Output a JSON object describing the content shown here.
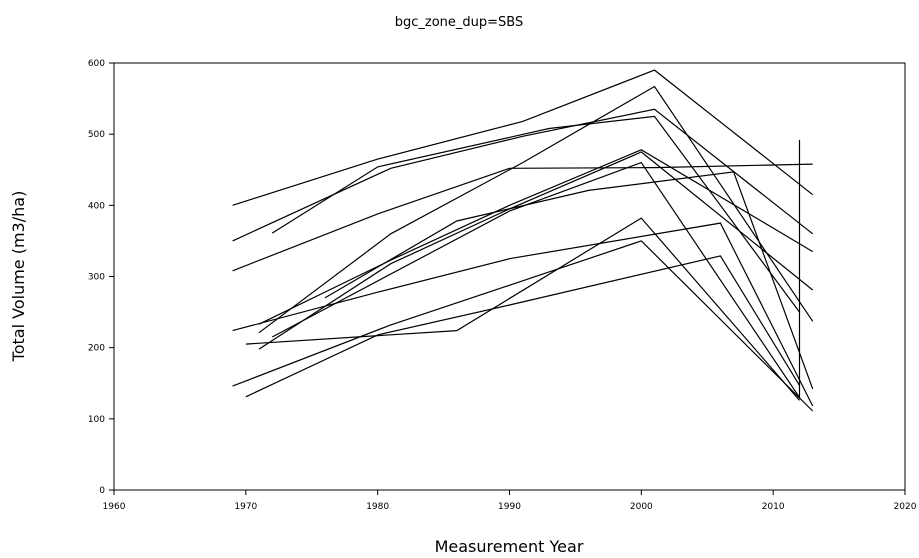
{
  "chart_data": {
    "type": "line",
    "title": "bgc_zone_dup=SBS",
    "xlabel": "Measurement Year",
    "ylabel": "Total Volume (m3/ha)",
    "xlim": [
      1960,
      2020
    ],
    "ylim": [
      0,
      600
    ],
    "xticks": [
      "1960",
      "1970",
      "1980",
      "1990",
      "2000",
      "2010",
      "2020"
    ],
    "yticks": [
      "0",
      "100",
      "200",
      "300",
      "400",
      "500",
      "600"
    ],
    "grid": false,
    "legend": "none",
    "line_color": "#000000",
    "series": [
      {
        "x": [
          1969,
          1980,
          1991,
          2001,
          2013
        ],
        "y": [
          400,
          465,
          518,
          590,
          415
        ]
      },
      {
        "x": [
          1969,
          1981,
          1991,
          2001,
          2013
        ],
        "y": [
          350,
          452,
          497,
          535,
          360
        ]
      },
      {
        "x": [
          1972,
          1980,
          1993,
          2001,
          2012
        ],
        "y": [
          361,
          454,
          508,
          525,
          250
        ]
      },
      {
        "x": [
          1969,
          1980,
          1990,
          2001,
          2013
        ],
        "y": [
          308,
          388,
          452,
          453,
          458
        ]
      },
      {
        "x": [
          1971,
          1981,
          1991,
          2001,
          2013
        ],
        "y": [
          221,
          360,
          460,
          567,
          237
        ]
      },
      {
        "x": [
          1971,
          1981,
          1990,
          2000,
          2013
        ],
        "y": [
          233,
          323,
          400,
          478,
          335
        ]
      },
      {
        "x": [
          1971,
          1981,
          1990,
          2000,
          2013
        ],
        "y": [
          198,
          318,
          395,
          475,
          281
        ]
      },
      {
        "x": [
          1976,
          1986,
          1996,
          2007,
          2013
        ],
        "y": [
          270,
          378,
          421,
          447,
          142
        ]
      },
      {
        "x": [
          1969,
          1980,
          1990,
          2006,
          2013
        ],
        "y": [
          224,
          278,
          325,
          375,
          118
        ]
      },
      {
        "x": [
          1970,
          1986,
          2000,
          2012
        ],
        "y": [
          205,
          224,
          382,
          126
        ]
      },
      {
        "x": [
          1969,
          1981,
          1991,
          2000,
          2013
        ],
        "y": [
          146,
          232,
          294,
          350,
          111
        ]
      },
      {
        "x": [
          1970,
          1980,
          1990,
          2006,
          2012
        ],
        "y": [
          131,
          218,
          260,
          329,
          147
        ]
      },
      {
        "x": [
          1972,
          1990,
          2000,
          2012,
          2012
        ],
        "y": [
          215,
          392,
          460,
          130,
          492
        ]
      }
    ]
  }
}
